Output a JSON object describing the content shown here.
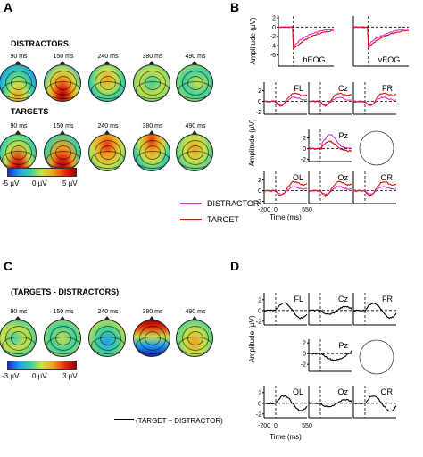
{
  "panels": {
    "A": "A",
    "B": "B",
    "C": "C",
    "D": "D"
  },
  "panelA": {
    "distractors_title": "DISTRACTORS",
    "targets_title": "TARGETS",
    "times": [
      "90 ms",
      "150 ms",
      "240 ms",
      "380 ms",
      "490 ms"
    ],
    "colorbar": {
      "min": "-5 µV",
      "mid": "0 µV",
      "max": "5 µV"
    },
    "colors": [
      "#1a2fc0",
      "#1fa0f0",
      "#3fd0a0",
      "#c8e04a",
      "#f0a020",
      "#e03010",
      "#a00000"
    ]
  },
  "panelB": {
    "ylabel": "Amplitude (µV)",
    "eog": [
      "hEOG",
      "vEOG"
    ],
    "eog_ticks": [
      "2",
      "0",
      "-2",
      "-4",
      "-6"
    ],
    "channels_row1": [
      "FL",
      "Cz",
      "FR"
    ],
    "channel_pz": "Pz",
    "channels_row3": [
      "OL",
      "Oz",
      "OR"
    ],
    "ticks": [
      "2",
      "0",
      "-2"
    ],
    "x_ticks": [
      "-200",
      "0",
      "550"
    ],
    "xlabel": "Time (ms)",
    "legend": [
      "DISTRACTOR",
      "TARGET"
    ],
    "legend_colors": [
      "#e030d0",
      "#e01010"
    ]
  },
  "panelC": {
    "title": "(TARGETS - DISTRACTORS)",
    "times": [
      "90 ms",
      "150 ms",
      "240 ms",
      "380 ms",
      "490 ms"
    ],
    "colorbar": {
      "min": "-3 µV",
      "mid": "0 µV",
      "max": "3 µV"
    }
  },
  "panelD": {
    "ylabel": "Amplitude (µV)",
    "channels_row1": [
      "FL",
      "Cz",
      "FR"
    ],
    "channel_pz": "Pz",
    "channels_row3": [
      "OL",
      "Oz",
      "OR"
    ],
    "ticks": [
      "2",
      "0",
      "-2"
    ],
    "x_ticks": [
      "-200",
      "0",
      "550"
    ],
    "xlabel": "Time (ms)",
    "legend": "(TARGET – DISTRACTOR)"
  }
}
